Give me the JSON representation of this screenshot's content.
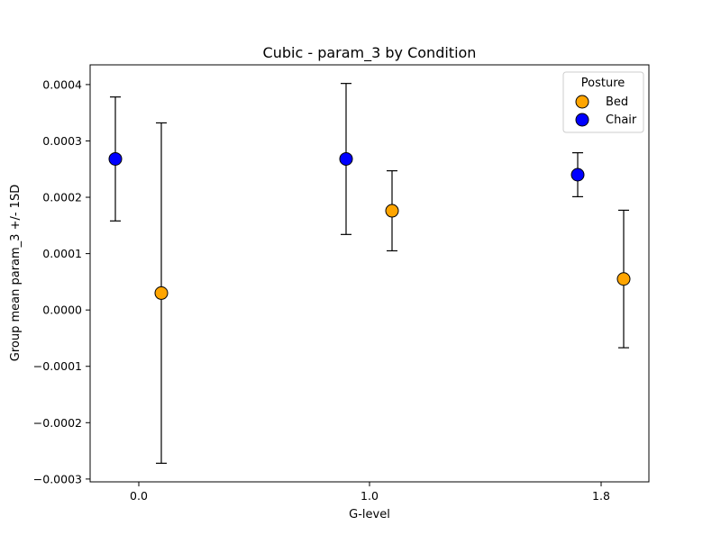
{
  "chart_data": {
    "type": "scatter",
    "title": "Cubic - param_3 by Condition",
    "xlabel": "G-level",
    "ylabel": "Group mean param_3 +/- 1SD",
    "x_categories": [
      "0.0",
      "1.0",
      "1.8"
    ],
    "ylim": [
      -0.000305,
      0.000435
    ],
    "yticks": [
      -0.0003,
      -0.0002,
      -0.0001,
      0.0,
      0.0001,
      0.0002,
      0.0003,
      0.0004
    ],
    "ytick_labels": [
      "−0.0003",
      "−0.0002",
      "−0.0001",
      "0.0000",
      "0.0001",
      "0.0002",
      "0.0003",
      "0.0004"
    ],
    "grid": false,
    "legend": {
      "title": "Posture",
      "placement": "top-right"
    },
    "series": [
      {
        "name": "Bed",
        "color": "#FFA500",
        "offset": "right",
        "points": [
          {
            "category": "0.0",
            "mean": 3e-05,
            "sd": 0.000302
          },
          {
            "category": "1.0",
            "mean": 0.000176,
            "sd": 7.1e-05
          },
          {
            "category": "1.8",
            "mean": 5.5e-05,
            "sd": 0.000122
          }
        ]
      },
      {
        "name": "Chair",
        "color": "#0000FF",
        "offset": "left",
        "points": [
          {
            "category": "0.0",
            "mean": 0.000268,
            "sd": 0.00011
          },
          {
            "category": "1.0",
            "mean": 0.000268,
            "sd": 0.000134
          },
          {
            "category": "1.8",
            "mean": 0.00024,
            "sd": 3.9e-05
          }
        ]
      }
    ]
  }
}
